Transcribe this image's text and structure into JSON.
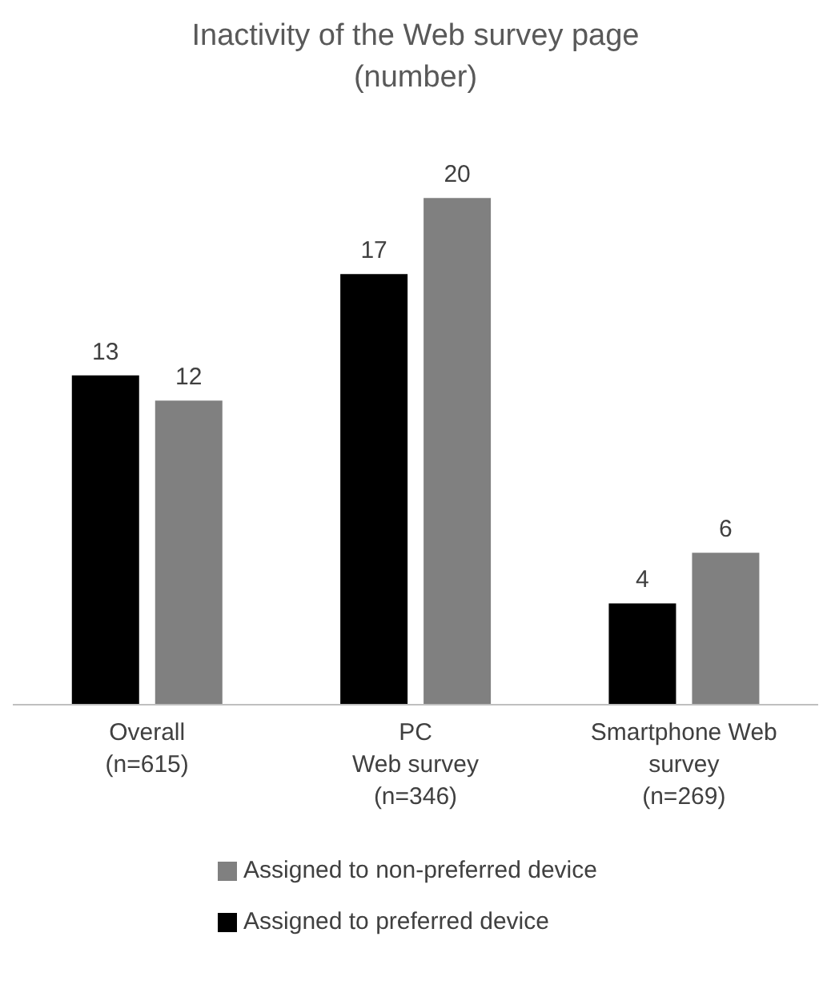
{
  "chart_data": {
    "type": "bar",
    "title": "Inactivity of the Web survey page\n(number)",
    "categories": [
      "Overall\n(n=615)",
      "PC\nWeb survey\n(n=346)",
      "Smartphone Web\nsurvey\n(n=269)"
    ],
    "series": [
      {
        "name": "Assigned to preferred device",
        "color": "#000000",
        "values": [
          13,
          17,
          4
        ]
      },
      {
        "name": "Assigned to non-preferred device",
        "color": "#808080",
        "values": [
          12,
          20,
          6
        ]
      }
    ],
    "data_labels": true,
    "legend": "bottom",
    "grid": false
  }
}
